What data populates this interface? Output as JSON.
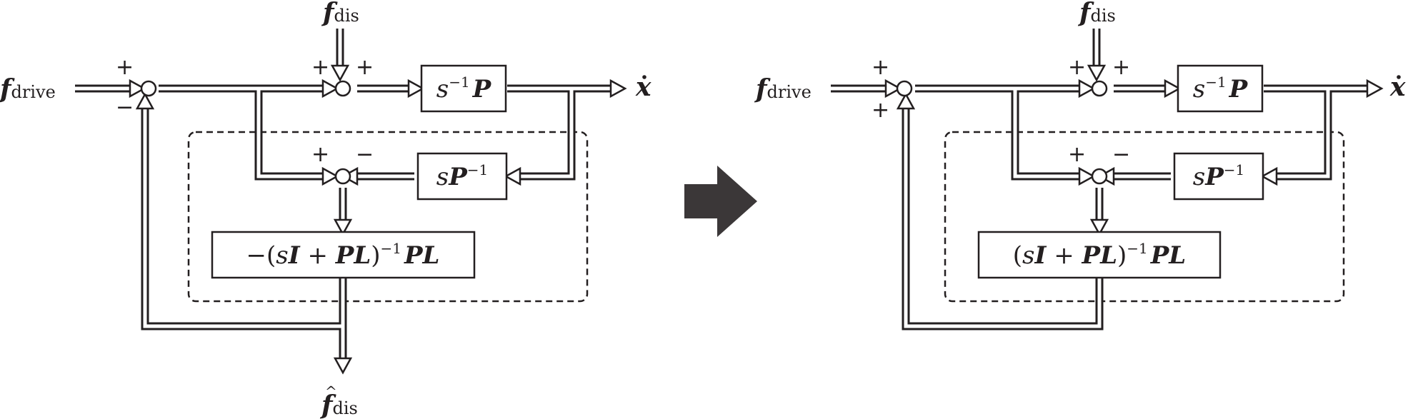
{
  "colors": {
    "ink": "#231f20",
    "arrow_fill": "#3b3738",
    "background": "#ffffff"
  },
  "left": {
    "f_drive": {
      "main": "f",
      "sub": "drive"
    },
    "f_dis": {
      "main": "f",
      "sub": "dis"
    },
    "x_dot": "x",
    "block_sP_inv_P": {
      "a": "s",
      "b": "−1",
      "c": "P"
    },
    "block_sP_inv": {
      "a": "s",
      "b": "P",
      "c": "−1"
    },
    "block_filter": {
      "a": "−(",
      "b": "s",
      "c": "I",
      "d": " + ",
      "e": "PL",
      "f": ")",
      "g": "−1",
      "h": "PL"
    },
    "f_dis_hat": {
      "main": "f",
      "sub": "dis",
      "hat": "^"
    },
    "signs": {
      "outer_top": "+",
      "outer_bottom": "−",
      "mid_left": "+",
      "mid_right": "+",
      "lower_left": "+",
      "lower_right": "−"
    }
  },
  "right": {
    "f_drive": {
      "main": "f",
      "sub": "drive"
    },
    "f_dis": {
      "main": "f",
      "sub": "dis"
    },
    "x_dot": "x",
    "block_sP_inv_P": {
      "a": "s",
      "b": "−1",
      "c": "P"
    },
    "block_sP_inv": {
      "a": "s",
      "b": "P",
      "c": "−1"
    },
    "block_filter": {
      "a": "(",
      "b": "s",
      "c": "I",
      "d": " + ",
      "e": "PL",
      "f": ")",
      "g": "−1",
      "h": "PL"
    },
    "signs": {
      "outer_top": "+",
      "outer_bottom": "+",
      "mid_left": "+",
      "mid_right": "+",
      "lower_left": "+",
      "lower_right": "−"
    }
  }
}
